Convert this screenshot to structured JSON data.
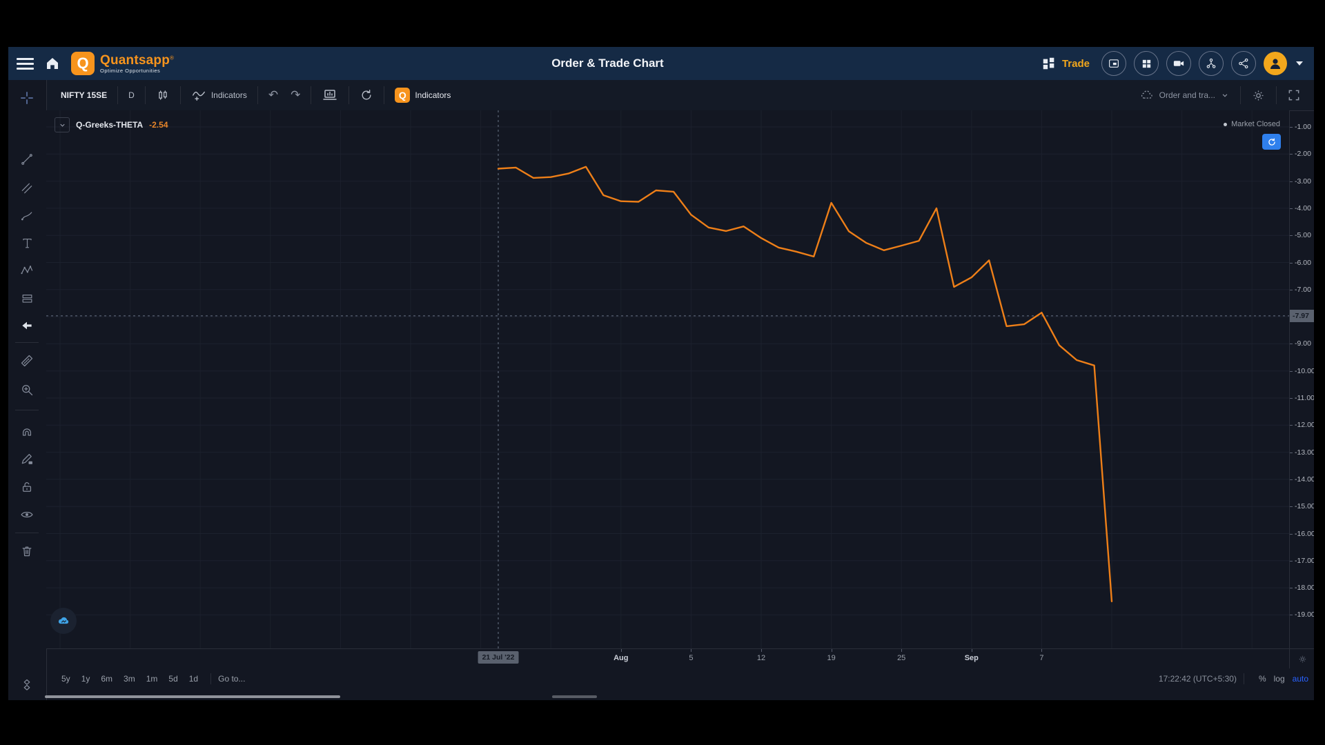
{
  "header": {
    "title": "Order & Trade Chart",
    "brand": {
      "logo_letter": "Q",
      "name": "Quantsapp",
      "registered": "®",
      "tagline": "Optimize Opportunities"
    },
    "trade_label": "Trade",
    "left_icons": [
      "menu-icon",
      "home-icon"
    ],
    "right_icons": [
      "multichart-icon",
      "layout-grid-icon",
      "recorder-icon",
      "strategy-flow-icon",
      "share-icon"
    ],
    "avatar": "user-avatar"
  },
  "toolbar": {
    "symbol": "NIFTY 15SE",
    "interval": "D",
    "candles_icon": "candlestick-icon",
    "indicators_label": "Indicators",
    "undo_glyph": "↶",
    "redo_glyph": "↷",
    "q_logo_letter": "Q",
    "q_indicators_label": "Indicators",
    "order_dropdown_label": "Order and tra...",
    "right_icons": [
      "cloud-save-icon",
      "chevron-down-icon",
      "gear-icon",
      "fullscreen-icon"
    ]
  },
  "sidebar": {
    "tools": [
      {
        "name": "crosshair-tool",
        "icon": "crosshair"
      },
      {
        "name": "trend-line-tool",
        "icon": "trend"
      },
      {
        "name": "fib-retracement-tool",
        "icon": "fib"
      },
      {
        "name": "brush-tool",
        "icon": "brush"
      },
      {
        "name": "text-tool",
        "icon": "text"
      },
      {
        "name": "xabcd-pattern-tool",
        "icon": "xabcd"
      },
      {
        "name": "long-position-tool",
        "icon": "position"
      },
      {
        "name": "arrow-marker-tool",
        "icon": "arrowleft"
      },
      {
        "divider": true
      },
      {
        "name": "measure-tool",
        "icon": "ruler"
      },
      {
        "name": "zoom-in-tool",
        "icon": "zoomin"
      },
      {
        "divider": true
      },
      {
        "name": "magnet-tool",
        "icon": "magnet"
      },
      {
        "name": "lock-drawings-tool",
        "icon": "pencillock"
      },
      {
        "name": "unlock-tool",
        "icon": "lockopen"
      },
      {
        "name": "hide-drawings-tool",
        "icon": "eye"
      },
      {
        "divider": true
      },
      {
        "name": "remove-drawings-tool",
        "icon": "trash"
      },
      {
        "name": "object-tree-tool",
        "icon": "objtree"
      }
    ]
  },
  "legend": {
    "series_name": "Q-Greeks-THETA",
    "value": "-2.54"
  },
  "market_status": {
    "label": "Market Closed"
  },
  "bottom_bar": {
    "ranges": [
      "5y",
      "1y",
      "6m",
      "3m",
      "1m",
      "5d",
      "1d"
    ],
    "goto_label": "Go to...",
    "clock": "17:22:42 (UTC+5:30)",
    "percent_label": "%",
    "log_label": "log",
    "auto_label": "auto"
  },
  "colors": {
    "accent_orange": "#f7941d",
    "line_orange": "#ee7f18",
    "header_navy": "#152a45",
    "panel_dark": "#131722",
    "blue_button": "#2f80ed",
    "auto_blue": "#2962ff",
    "badge_gray": "#5a616e"
  },
  "chart_data": {
    "type": "line",
    "title": "Q-Greeks-THETA",
    "xlabel": "",
    "ylabel": "",
    "grid": true,
    "legend_position": "top-left",
    "y_axis": {
      "min": -19,
      "max": -1,
      "tick_step": 1
    },
    "x_ticks": [
      {
        "index": 7,
        "label": "Aug",
        "bold": true
      },
      {
        "index": 11,
        "label": "5"
      },
      {
        "index": 15,
        "label": "12"
      },
      {
        "index": 19,
        "label": "19"
      },
      {
        "index": 23,
        "label": "25"
      },
      {
        "index": 27,
        "label": "Sep",
        "bold": true
      },
      {
        "index": 31,
        "label": "7"
      }
    ],
    "crosshair": {
      "x_index": 0,
      "x_badge": "21 Jul '22",
      "y_value": -7.97,
      "y_badge": "-7.97"
    },
    "series": [
      {
        "name": "Q-Greeks-THETA",
        "color": "#ee7f18",
        "points": [
          {
            "date": "21 Jul '22",
            "value": -2.54
          },
          {
            "date": "22 Jul",
            "value": -2.5
          },
          {
            "date": "25 Jul",
            "value": -2.88
          },
          {
            "date": "26 Jul",
            "value": -2.85
          },
          {
            "date": "27 Jul",
            "value": -2.72
          },
          {
            "date": "28 Jul",
            "value": -2.47
          },
          {
            "date": "29 Jul",
            "value": -3.52
          },
          {
            "date": "1 Aug",
            "value": -3.74
          },
          {
            "date": "2 Aug",
            "value": -3.76
          },
          {
            "date": "3 Aug",
            "value": -3.34
          },
          {
            "date": "4 Aug",
            "value": -3.39
          },
          {
            "date": "5 Aug",
            "value": -4.24
          },
          {
            "date": "8 Aug",
            "value": -4.71
          },
          {
            "date": "10 Aug",
            "value": -4.84
          },
          {
            "date": "11 Aug",
            "value": -4.67
          },
          {
            "date": "12 Aug",
            "value": -5.1
          },
          {
            "date": "16 Aug",
            "value": -5.45
          },
          {
            "date": "17 Aug",
            "value": -5.6
          },
          {
            "date": "18 Aug",
            "value": -5.78
          },
          {
            "date": "19 Aug",
            "value": -3.8
          },
          {
            "date": "22 Aug",
            "value": -4.85
          },
          {
            "date": "23 Aug",
            "value": -5.28
          },
          {
            "date": "24 Aug",
            "value": -5.55
          },
          {
            "date": "25 Aug",
            "value": -5.38
          },
          {
            "date": "26 Aug",
            "value": -5.2
          },
          {
            "date": "29 Aug",
            "value": -4.0
          },
          {
            "date": "30 Aug",
            "value": -6.9
          },
          {
            "date": "1 Sep",
            "value": -6.55
          },
          {
            "date": "2 Sep",
            "value": -5.92
          },
          {
            "date": "5 Sep",
            "value": -8.35
          },
          {
            "date": "6 Sep",
            "value": -8.28
          },
          {
            "date": "7 Sep",
            "value": -7.85
          },
          {
            "date": "8 Sep",
            "value": -9.05
          },
          {
            "date": "9 Sep",
            "value": -9.6
          },
          {
            "date": "12 Sep",
            "value": -9.8
          },
          {
            "date": "13 Sep",
            "value": -18.5
          }
        ]
      }
    ]
  }
}
